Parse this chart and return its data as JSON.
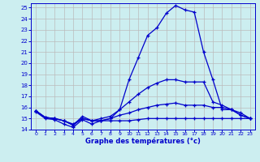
{
  "xlabel": "Graphe des températures (°c)",
  "bg_color": "#cceef0",
  "line_color": "#0000cc",
  "grid_color": "#bbbbbb",
  "xlim": [
    -0.5,
    23.5
  ],
  "ylim": [
    14,
    25.4
  ],
  "yticks": [
    14,
    15,
    16,
    17,
    18,
    19,
    20,
    21,
    22,
    23,
    24,
    25
  ],
  "xticks": [
    0,
    1,
    2,
    3,
    4,
    5,
    6,
    7,
    8,
    9,
    10,
    11,
    12,
    13,
    14,
    15,
    16,
    17,
    18,
    19,
    20,
    21,
    22,
    23
  ],
  "hours": [
    0,
    1,
    2,
    3,
    4,
    5,
    6,
    7,
    8,
    9,
    10,
    11,
    12,
    13,
    14,
    15,
    16,
    17,
    18,
    19,
    20,
    21,
    22,
    23
  ],
  "line_max": [
    15.7,
    15.1,
    15.0,
    14.8,
    14.4,
    15.2,
    14.8,
    14.8,
    15.0,
    15.8,
    18.5,
    20.5,
    22.5,
    23.2,
    24.5,
    25.2,
    24.8,
    24.6,
    21.0,
    18.5,
    15.8,
    15.8,
    15.3,
    15.0
  ],
  "line_avg": [
    15.7,
    15.1,
    15.0,
    14.8,
    14.5,
    15.0,
    14.8,
    15.0,
    15.2,
    15.8,
    16.5,
    17.2,
    17.8,
    18.2,
    18.5,
    18.5,
    18.3,
    18.3,
    18.3,
    16.5,
    16.2,
    15.8,
    15.5,
    15.0
  ],
  "line_min": [
    15.7,
    15.1,
    15.0,
    14.8,
    14.4,
    15.0,
    14.8,
    14.8,
    15.0,
    15.3,
    15.5,
    15.8,
    16.0,
    16.2,
    16.3,
    16.4,
    16.2,
    16.2,
    16.2,
    16.0,
    16.0,
    15.8,
    15.3,
    15.0
  ],
  "line_cur": [
    15.6,
    15.0,
    14.9,
    14.5,
    14.2,
    14.9,
    14.5,
    14.8,
    14.8,
    14.8,
    14.8,
    14.9,
    15.0,
    15.0,
    15.0,
    15.0,
    15.0,
    15.0,
    15.0,
    15.0,
    15.0,
    15.0,
    15.0,
    15.0
  ]
}
